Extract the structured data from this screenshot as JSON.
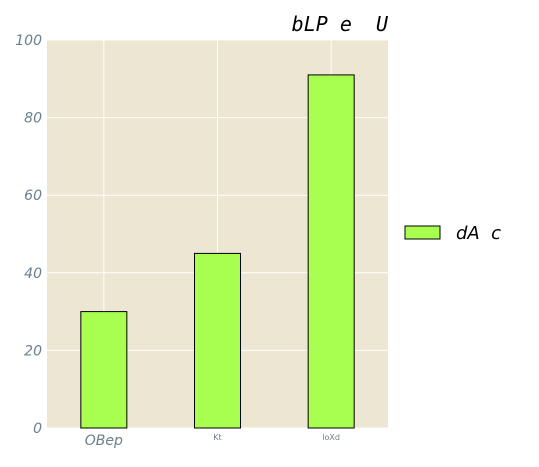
{
  "chart_data": {
    "type": "bar",
    "title": "bLP e  U",
    "categories": [
      "OBep",
      "Kt",
      "loXd"
    ],
    "series": [
      {
        "name": "dA  c",
        "values": [
          30,
          45,
          91
        ]
      }
    ],
    "xlabel": "",
    "ylabel": "",
    "ylim": [
      0,
      100
    ],
    "yticks": [
      "0",
      "20",
      "40",
      "60",
      "80",
      "100"
    ],
    "grid": true,
    "legend_position": "right",
    "colors": {
      "bar_fill": "#a8ff50",
      "bar_edge": "#000000",
      "plot_background": "#ede6d2",
      "grid": "#ffffff",
      "tick_text": "#6b7f8c"
    }
  }
}
